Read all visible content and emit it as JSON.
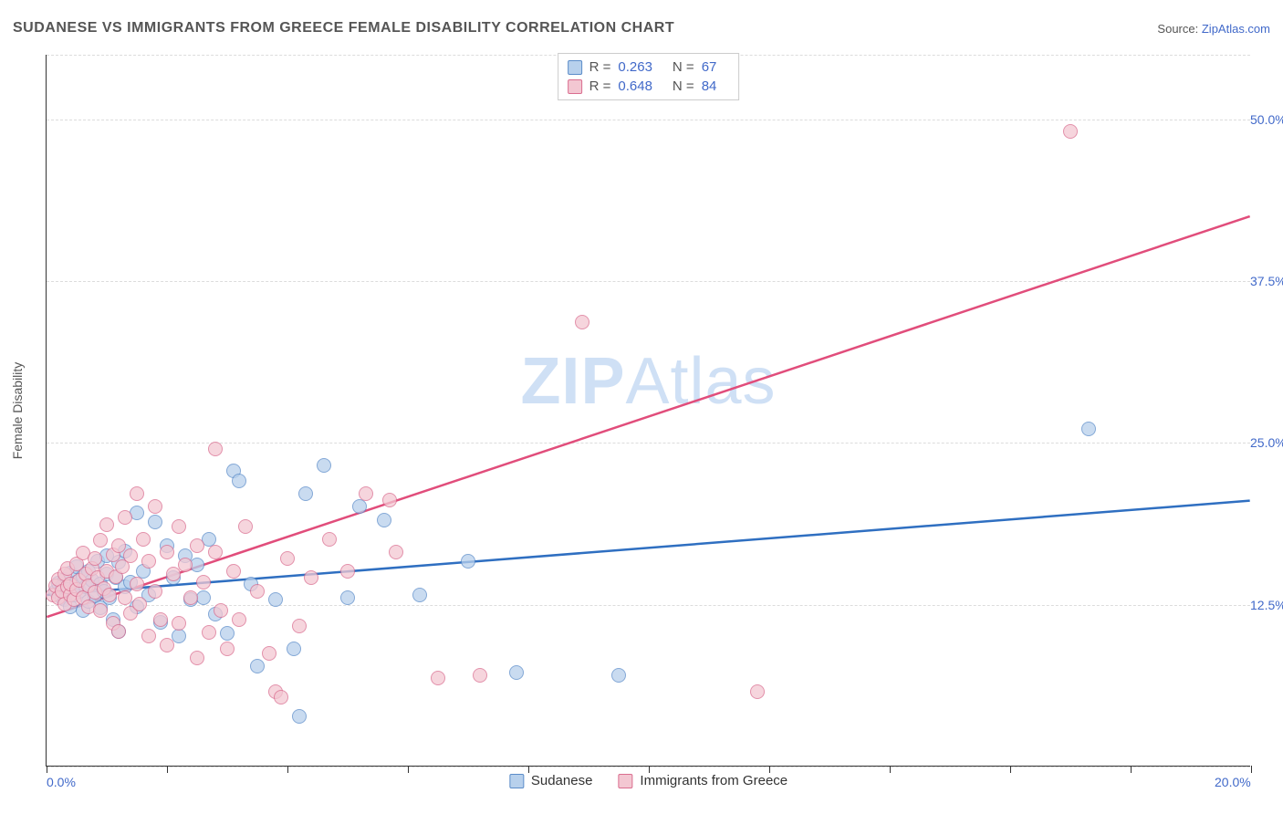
{
  "header": {
    "title": "SUDANESE VS IMMIGRANTS FROM GREECE FEMALE DISABILITY CORRELATION CHART",
    "source_label": "Source:",
    "source_value": "ZipAtlas.com"
  },
  "watermark": {
    "zip": "ZIP",
    "atlas": "Atlas"
  },
  "chart": {
    "type": "scatter",
    "ylabel": "Female Disability",
    "xlim": [
      0,
      20
    ],
    "ylim": [
      0,
      55
    ],
    "xtick_positions": [
      0,
      2,
      4,
      6,
      8,
      10,
      12,
      14,
      16,
      18,
      20
    ],
    "xtick_labels_shown": {
      "0": "0.0%",
      "20": "20.0%"
    },
    "ytick_positions": [
      12.5,
      25.0,
      37.5,
      50.0
    ],
    "ytick_labels": [
      "12.5%",
      "25.0%",
      "37.5%",
      "50.0%"
    ],
    "grid_y_positions": [
      0,
      12.5,
      25.0,
      37.5,
      50.0,
      55
    ],
    "grid_color": "#dcdcdc",
    "background_color": "#ffffff",
    "point_radius": 8,
    "point_opacity": 0.75,
    "series": [
      {
        "name": "Sudanese",
        "fill_color": "#b7d0ec",
        "stroke_color": "#5b8cc9",
        "line_color": "#2f6fc1",
        "R": "0.263",
        "N": "67",
        "trend": {
          "y_at_x0": 13.2,
          "y_at_x20": 20.5
        },
        "points": [
          [
            0.15,
            13.5
          ],
          [
            0.2,
            14.1
          ],
          [
            0.25,
            13.0
          ],
          [
            0.25,
            13.8
          ],
          [
            0.3,
            14.4
          ],
          [
            0.3,
            12.8
          ],
          [
            0.35,
            13.6
          ],
          [
            0.4,
            14.9
          ],
          [
            0.4,
            12.3
          ],
          [
            0.45,
            13.2
          ],
          [
            0.5,
            14.2
          ],
          [
            0.5,
            15.4
          ],
          [
            0.55,
            13.5
          ],
          [
            0.6,
            14.6
          ],
          [
            0.6,
            12.0
          ],
          [
            0.65,
            13.8
          ],
          [
            0.7,
            15.0
          ],
          [
            0.7,
            12.7
          ],
          [
            0.75,
            14.3
          ],
          [
            0.8,
            13.1
          ],
          [
            0.85,
            15.8
          ],
          [
            0.9,
            14.0
          ],
          [
            0.9,
            12.2
          ],
          [
            0.95,
            13.5
          ],
          [
            1.0,
            14.8
          ],
          [
            1.0,
            16.2
          ],
          [
            1.05,
            13.0
          ],
          [
            1.1,
            11.3
          ],
          [
            1.15,
            14.5
          ],
          [
            1.2,
            15.7
          ],
          [
            1.2,
            10.4
          ],
          [
            1.3,
            13.8
          ],
          [
            1.3,
            16.6
          ],
          [
            1.4,
            14.2
          ],
          [
            1.5,
            19.5
          ],
          [
            1.5,
            12.3
          ],
          [
            1.6,
            15.0
          ],
          [
            1.7,
            13.2
          ],
          [
            1.8,
            18.8
          ],
          [
            1.9,
            11.1
          ],
          [
            2.0,
            17.0
          ],
          [
            2.1,
            14.5
          ],
          [
            2.2,
            10.0
          ],
          [
            2.3,
            16.2
          ],
          [
            2.4,
            12.8
          ],
          [
            2.5,
            15.5
          ],
          [
            2.6,
            13.0
          ],
          [
            2.7,
            17.5
          ],
          [
            2.8,
            11.7
          ],
          [
            3.0,
            10.2
          ],
          [
            3.1,
            22.8
          ],
          [
            3.2,
            22.0
          ],
          [
            3.4,
            14.0
          ],
          [
            3.5,
            7.7
          ],
          [
            3.8,
            12.8
          ],
          [
            4.1,
            9.0
          ],
          [
            4.3,
            21.0
          ],
          [
            4.6,
            23.2
          ],
          [
            5.0,
            13.0
          ],
          [
            5.2,
            20.0
          ],
          [
            5.6,
            19.0
          ],
          [
            6.2,
            13.2
          ],
          [
            7.0,
            15.8
          ],
          [
            7.8,
            7.2
          ],
          [
            9.5,
            7.0
          ],
          [
            4.2,
            3.8
          ],
          [
            17.3,
            26.0
          ]
        ]
      },
      {
        "name": "Immigrants from Greece",
        "fill_color": "#f3c7d2",
        "stroke_color": "#da6d8f",
        "line_color": "#e14d7b",
        "R": "0.648",
        "N": "84",
        "trend": {
          "y_at_x0": 11.5,
          "y_at_x20": 42.5
        },
        "points": [
          [
            0.1,
            13.2
          ],
          [
            0.15,
            13.9
          ],
          [
            0.2,
            13.0
          ],
          [
            0.2,
            14.4
          ],
          [
            0.25,
            13.5
          ],
          [
            0.3,
            14.8
          ],
          [
            0.3,
            12.5
          ],
          [
            0.35,
            13.8
          ],
          [
            0.35,
            15.2
          ],
          [
            0.4,
            13.2
          ],
          [
            0.4,
            14.0
          ],
          [
            0.45,
            12.8
          ],
          [
            0.5,
            13.6
          ],
          [
            0.5,
            15.6
          ],
          [
            0.55,
            14.3
          ],
          [
            0.6,
            13.0
          ],
          [
            0.6,
            16.4
          ],
          [
            0.65,
            14.8
          ],
          [
            0.7,
            12.3
          ],
          [
            0.7,
            13.9
          ],
          [
            0.75,
            15.2
          ],
          [
            0.8,
            13.4
          ],
          [
            0.8,
            16.0
          ],
          [
            0.85,
            14.5
          ],
          [
            0.9,
            12.0
          ],
          [
            0.9,
            17.4
          ],
          [
            0.95,
            13.7
          ],
          [
            1.0,
            15.0
          ],
          [
            1.0,
            18.6
          ],
          [
            1.05,
            13.2
          ],
          [
            1.1,
            16.3
          ],
          [
            1.1,
            11.0
          ],
          [
            1.15,
            14.6
          ],
          [
            1.2,
            17.0
          ],
          [
            1.2,
            10.4
          ],
          [
            1.25,
            15.4
          ],
          [
            1.3,
            13.0
          ],
          [
            1.3,
            19.2
          ],
          [
            1.4,
            11.8
          ],
          [
            1.4,
            16.2
          ],
          [
            1.5,
            14.0
          ],
          [
            1.5,
            21.0
          ],
          [
            1.55,
            12.5
          ],
          [
            1.6,
            17.5
          ],
          [
            1.7,
            10.0
          ],
          [
            1.7,
            15.8
          ],
          [
            1.8,
            13.5
          ],
          [
            1.8,
            20.0
          ],
          [
            1.9,
            11.3
          ],
          [
            2.0,
            16.5
          ],
          [
            2.0,
            9.3
          ],
          [
            2.1,
            14.8
          ],
          [
            2.2,
            18.5
          ],
          [
            2.2,
            11.0
          ],
          [
            2.3,
            15.5
          ],
          [
            2.4,
            13.0
          ],
          [
            2.5,
            8.3
          ],
          [
            2.5,
            17.0
          ],
          [
            2.6,
            14.2
          ],
          [
            2.7,
            10.3
          ],
          [
            2.8,
            16.5
          ],
          [
            2.8,
            24.5
          ],
          [
            2.9,
            12.0
          ],
          [
            3.0,
            9.0
          ],
          [
            3.1,
            15.0
          ],
          [
            3.2,
            11.3
          ],
          [
            3.3,
            18.5
          ],
          [
            3.5,
            13.5
          ],
          [
            3.7,
            8.7
          ],
          [
            3.8,
            5.7
          ],
          [
            3.9,
            5.3
          ],
          [
            4.0,
            16.0
          ],
          [
            4.2,
            10.8
          ],
          [
            4.4,
            14.5
          ],
          [
            4.7,
            17.5
          ],
          [
            5.0,
            15.0
          ],
          [
            5.3,
            21.0
          ],
          [
            5.7,
            20.5
          ],
          [
            5.8,
            16.5
          ],
          [
            6.5,
            6.8
          ],
          [
            7.2,
            7.0
          ],
          [
            8.9,
            34.3
          ],
          [
            11.8,
            5.7
          ],
          [
            17.0,
            49.0
          ]
        ]
      }
    ],
    "legend_top": {
      "R_label": "R =",
      "N_label": "N ="
    },
    "legend_bottom_labels": [
      "Sudanese",
      "Immigrants from Greece"
    ]
  }
}
